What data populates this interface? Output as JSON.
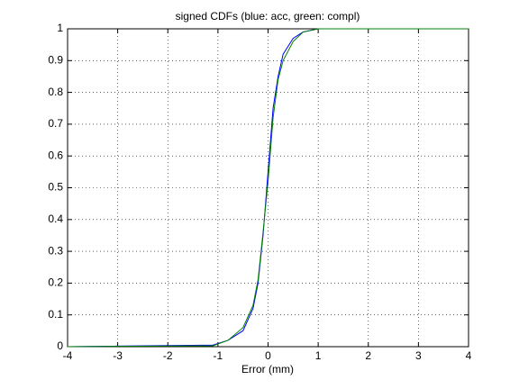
{
  "chart_data": {
    "type": "line",
    "title": "signed CDFs (blue: acc, green: compl)",
    "x_label": "Error (mm)",
    "x": [
      -4,
      -1.1,
      -0.8,
      -0.5,
      -0.3,
      -0.2,
      -0.1,
      0,
      0.1,
      0.2,
      0.3,
      0.5,
      0.7,
      1,
      4
    ],
    "series": [
      {
        "color": "#0000ff",
        "values": [
          0,
          0.005,
          0.02,
          0.05,
          0.12,
          0.2,
          0.35,
          0.55,
          0.75,
          0.85,
          0.92,
          0.97,
          0.99,
          1,
          1
        ]
      },
      {
        "color": "#008000",
        "values": [
          0,
          0.003,
          0.02,
          0.06,
          0.13,
          0.21,
          0.36,
          0.52,
          0.72,
          0.84,
          0.9,
          0.96,
          0.99,
          1,
          1
        ]
      }
    ],
    "xlim": [
      -4,
      4
    ],
    "xticks": [
      -4,
      -3,
      -2,
      -1,
      0,
      1,
      2,
      3,
      4
    ],
    "ylim": [
      0,
      1
    ],
    "yticks": [
      0,
      0.1,
      0.2,
      0.3,
      0.4,
      0.5,
      0.6,
      0.7,
      0.8,
      0.9,
      1
    ],
    "grid": true
  }
}
